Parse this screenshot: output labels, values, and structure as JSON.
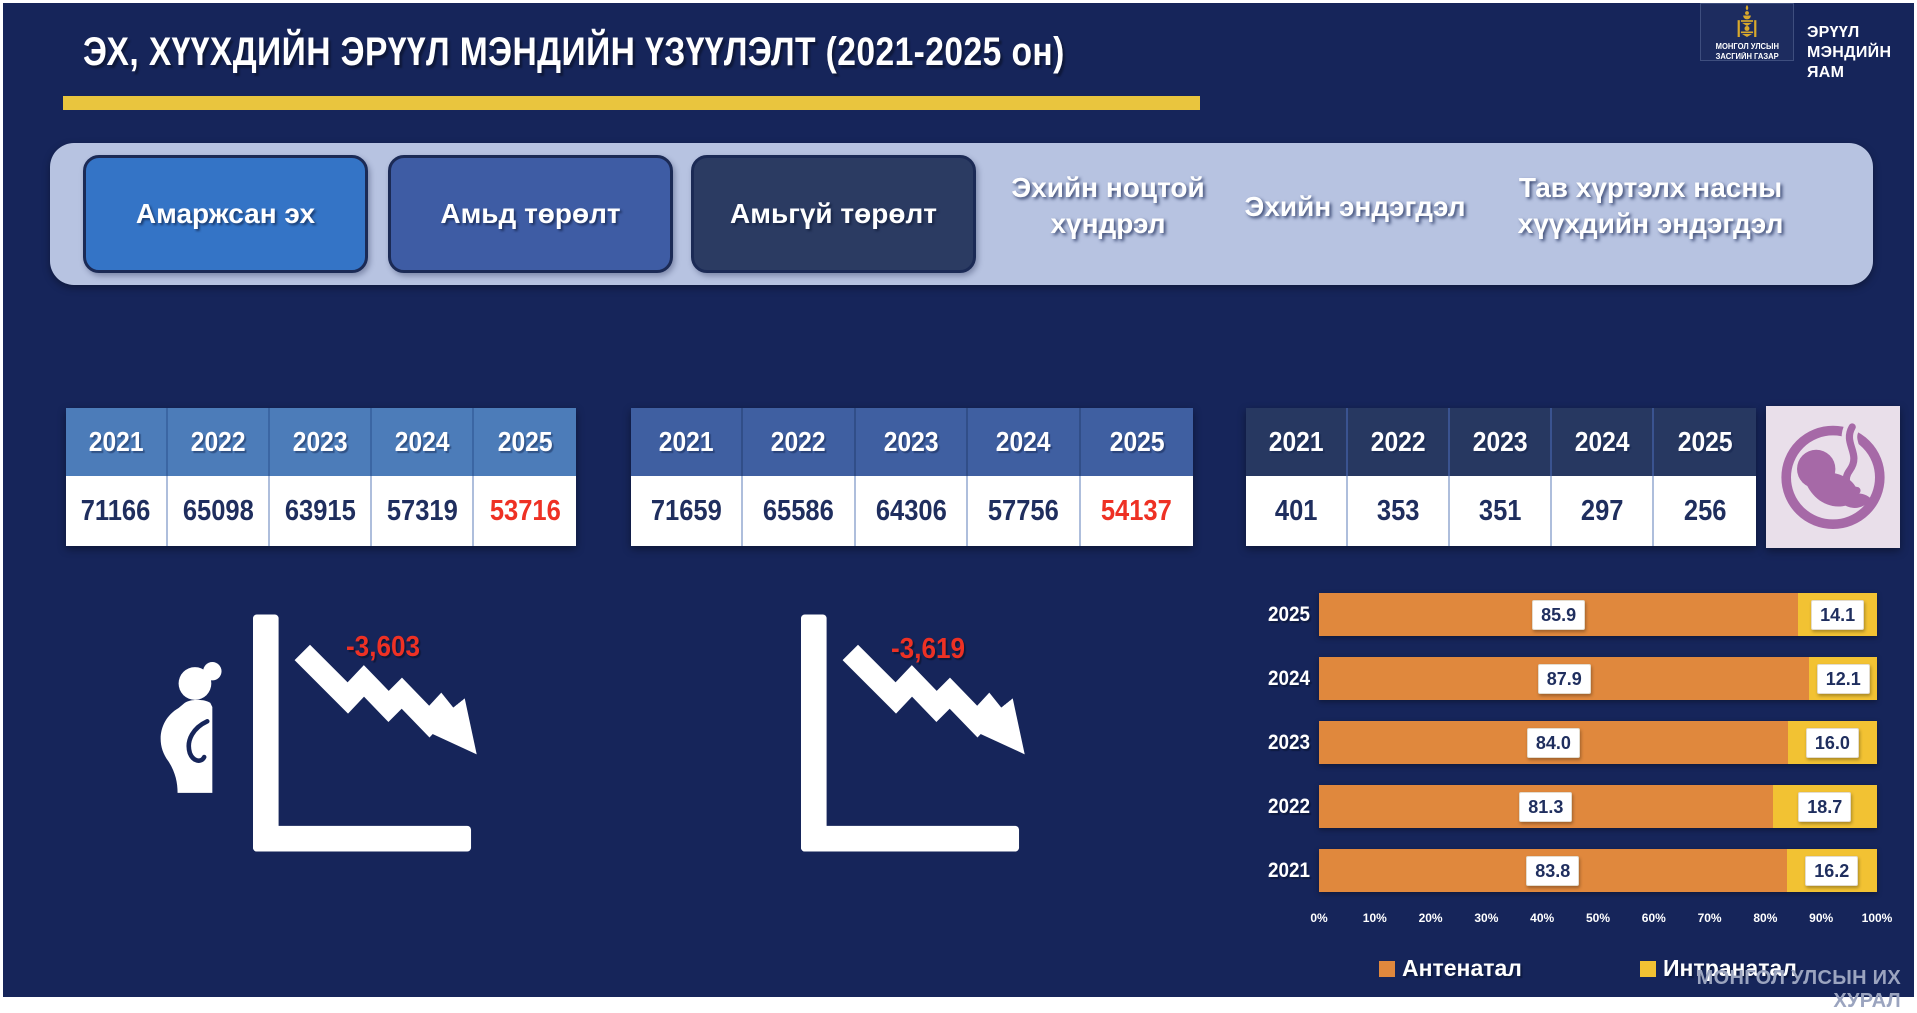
{
  "header": {
    "title": "ЭХ, ХҮҮХДИЙН ЭРҮҮЛ МЭНДИЙН ҮЗҮҮЛЭЛТ (2021-2025 он)",
    "gov_caption_line1": "МОНГОЛ УЛСЫН",
    "gov_caption_line2": "ЗАСГИЙН ГАЗАР",
    "ministry_line1": "ЭРҮҮЛ",
    "ministry_line2": "МЭНДИЙН ЯАМ"
  },
  "tabs": [
    {
      "label": "Амаржсан эх"
    },
    {
      "label": "Амьд төрөлт"
    },
    {
      "label": "Амьгүй төрөлт"
    },
    {
      "label": "Эхийн ноцтой хүндрэл"
    },
    {
      "label": "Эхийн эндэгдэл"
    },
    {
      "label": "Тав хүртэлх насны хүүхдийн эндэгдэл"
    }
  ],
  "years": [
    "2021",
    "2022",
    "2023",
    "2024",
    "2025"
  ],
  "chart_data": [
    {
      "type": "table",
      "label": "Амаржсан эх",
      "columns": [
        "2021",
        "2022",
        "2023",
        "2024",
        "2025"
      ],
      "values": [
        "71166",
        "65098",
        "63915",
        "57319",
        "53716"
      ],
      "highlight_last_red": true,
      "trend_change": "-3,603"
    },
    {
      "type": "table",
      "label": "Амьд төрөлт",
      "columns": [
        "2021",
        "2022",
        "2023",
        "2024",
        "2025"
      ],
      "values": [
        "71659",
        "65586",
        "64306",
        "57756",
        "54137"
      ],
      "highlight_last_red": true,
      "trend_change": "-3,619"
    },
    {
      "type": "table",
      "label": "Амьгүй төрөлт",
      "columns": [
        "2021",
        "2022",
        "2023",
        "2024",
        "2025"
      ],
      "values": [
        "401",
        "353",
        "351",
        "297",
        "256"
      ],
      "highlight_last_red": false
    },
    {
      "type": "bar",
      "orientation": "horizontal",
      "stacked": true,
      "categories": [
        "2025",
        "2024",
        "2023",
        "2022",
        "2021"
      ],
      "series": [
        {
          "name": "Антенатал",
          "color": "#E0883D",
          "values": [
            85.9,
            87.9,
            84.0,
            81.3,
            83.8
          ],
          "labels": [
            "85.9",
            "87.9",
            "84.0",
            "81.3",
            "83.8"
          ]
        },
        {
          "name": "Интранатал",
          "color": "#F2C233",
          "values": [
            14.1,
            12.1,
            16.0,
            18.7,
            16.2
          ],
          "labels": [
            "14.1",
            "12.1",
            "16.0",
            "18.7",
            "16.2"
          ]
        }
      ],
      "xlim": [
        0,
        100
      ],
      "x_ticks": [
        "0%",
        "10%",
        "20%",
        "30%",
        "40%",
        "50%",
        "60%",
        "70%",
        "80%",
        "90%",
        "100%"
      ],
      "legend_position": "bottom"
    }
  ],
  "footer": {
    "watermark": "МОНГОЛ УЛСЫН ИХ ХУРАЛ"
  },
  "colors": {
    "background": "#16255A",
    "accent_underline": "#E9C53E",
    "highlight_red": "#EE3124",
    "tabbar_bg": "#B7C3E1",
    "tab1_bg": "#3474C6",
    "tab2_bg": "#3E5CA4",
    "tab3_bg": "#2B3B62",
    "table1_header": "#4C7CB9",
    "table2_header": "#3F5FA1",
    "table3_header": "#273861",
    "value_navy": "#1F2E5E",
    "fetus_purple": "#A669A7",
    "fetus_bg": "#E9DFEA"
  }
}
